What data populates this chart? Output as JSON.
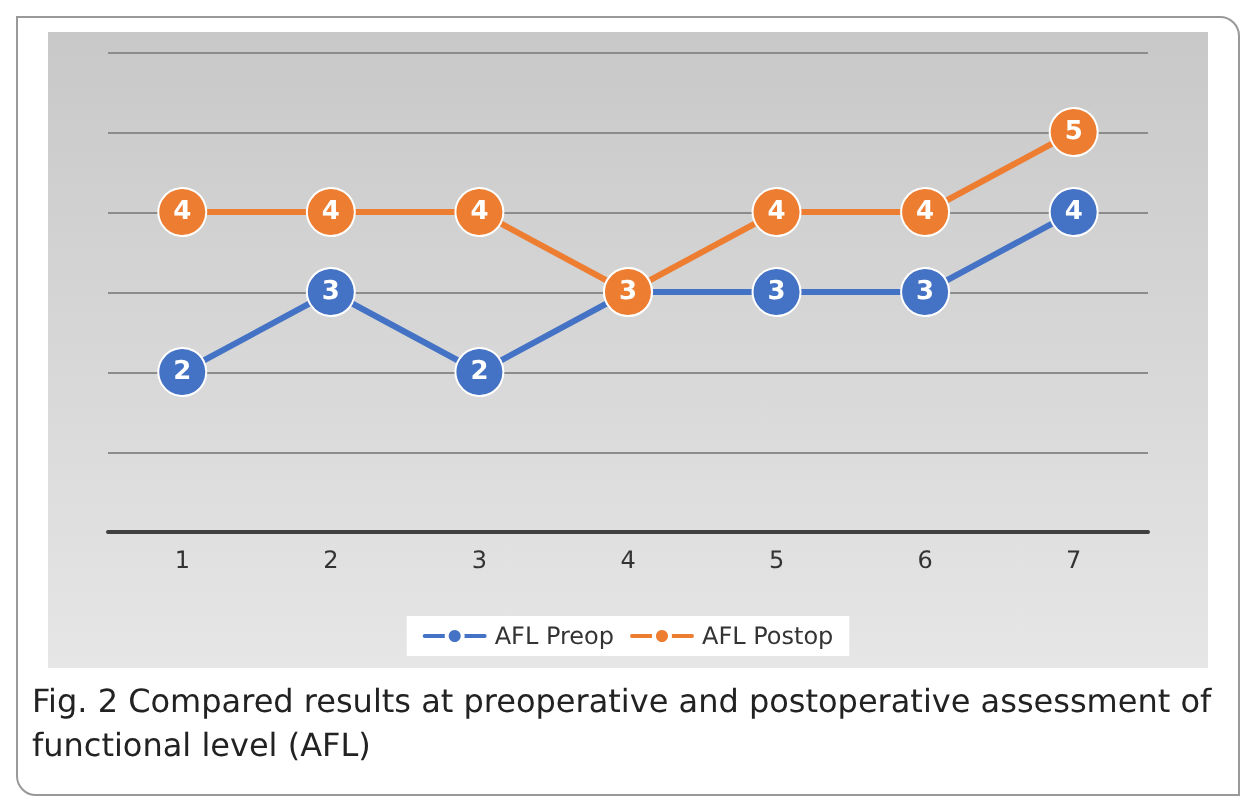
{
  "chart_data": {
    "type": "line",
    "categories": [
      "1",
      "2",
      "3",
      "4",
      "5",
      "6",
      "7"
    ],
    "series": [
      {
        "name": "AFL Preop",
        "color": "#4472c4",
        "values": [
          2,
          3,
          2,
          3,
          3,
          3,
          4
        ],
        "value_labels": [
          "2",
          "3",
          "2",
          null,
          "3",
          "3",
          "4"
        ]
      },
      {
        "name": "AFL Postop",
        "color": "#ed7d31",
        "values": [
          4,
          4,
          4,
          3,
          4,
          4,
          5
        ]
      }
    ],
    "ylim": [
      0,
      6
    ],
    "yticks": [
      {
        "value": 0,
        "label": null
      },
      {
        "value": 1,
        "label": null
      },
      {
        "value": 2,
        "label": null
      },
      {
        "value": 3,
        "label": null
      },
      {
        "value": 4,
        "label": null
      },
      {
        "value": 5,
        "label": null
      },
      {
        "value": 6,
        "label": null
      }
    ],
    "tick_labels": "x",
    "grid": "y",
    "legend": "bottom",
    "marker": "circle",
    "line_style": "solid",
    "data_labels": true,
    "annotations": [
      "Fig. 2  Compared results at preoperative and postoperative assessment of functional level (AFL)"
    ]
  }
}
